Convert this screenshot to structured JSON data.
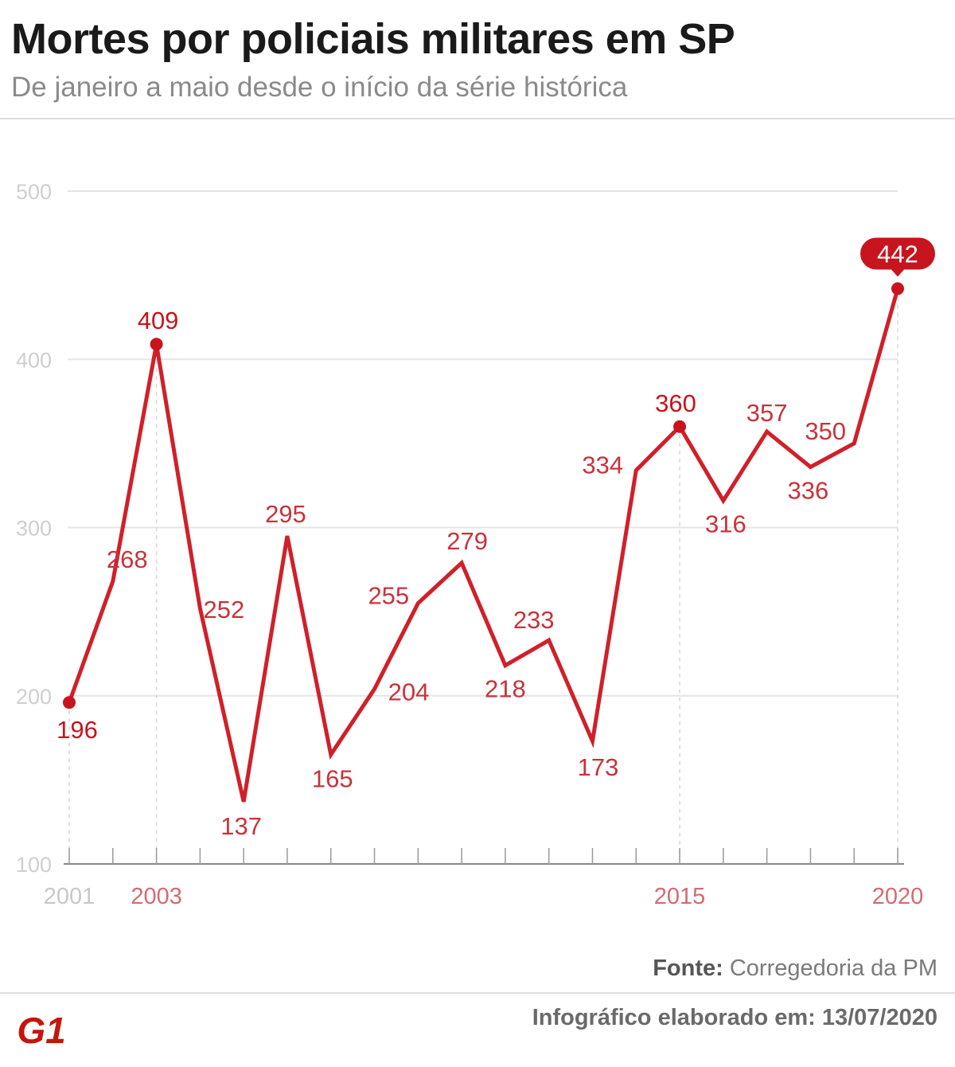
{
  "header": {
    "title": "Mortes por policiais militares em SP",
    "subtitle": "De janeiro a maio desde o início da série histórica"
  },
  "footer": {
    "source_label": "Fonte:",
    "source_value": "Corregedoria da PM",
    "credit": "Infográfico elaborado em: 13/07/2020",
    "logo_text": "G1"
  },
  "colors": {
    "line": "#d0202a",
    "label": "#c8333b",
    "highlight": "#c8141e",
    "grid": "#e5e5e5",
    "axis_text": "#cfcfcf",
    "year_text": "#d46a72"
  },
  "chart_data": {
    "type": "line",
    "title": "Mortes por policiais militares em SP",
    "subtitle": "De janeiro a maio desde o início da série histórica",
    "x": [
      2001,
      2002,
      2003,
      2004,
      2005,
      2006,
      2007,
      2008,
      2009,
      2010,
      2011,
      2012,
      2013,
      2014,
      2015,
      2016,
      2017,
      2018,
      2019,
      2020
    ],
    "values": [
      196,
      268,
      409,
      252,
      137,
      295,
      165,
      204,
      255,
      279,
      218,
      233,
      173,
      334,
      360,
      316,
      357,
      336,
      350,
      442
    ],
    "x_tick_labels": [
      "2001",
      "2003",
      "2015",
      "2020"
    ],
    "highlighted_years": [
      2001,
      2003,
      2015,
      2020
    ],
    "y_ticks": [
      100,
      200,
      300,
      400,
      500
    ],
    "ylim": [
      100,
      500
    ],
    "grid": true,
    "xlabel": "",
    "ylabel": ""
  }
}
